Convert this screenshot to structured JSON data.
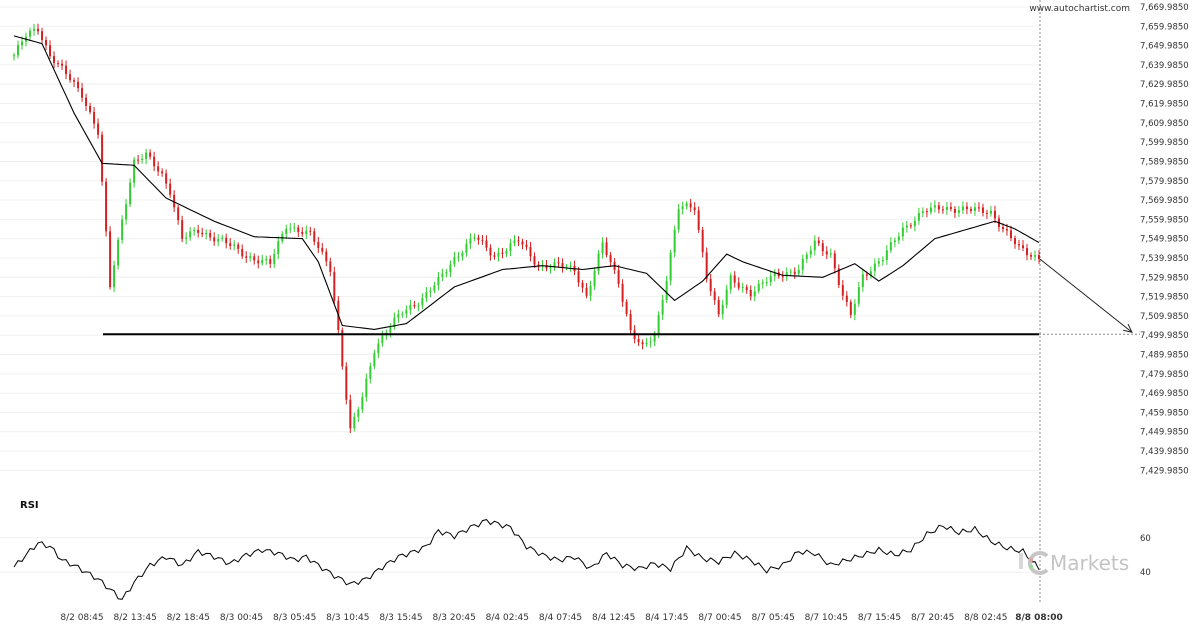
{
  "watermark_site": "www.autochartist.com",
  "brand": "Markets",
  "colors": {
    "up": "#33cc33",
    "down": "#d42020",
    "ma": "#000000",
    "level": "#000000",
    "grid": "#f0f0f0",
    "vline": "#888888"
  },
  "icons": [
    "brand-logo-icon"
  ],
  "chart_data": [
    {
      "type": "candlestick",
      "title": "",
      "x_tick_labels": [
        "8/2 08:45",
        "8/2 13:45",
        "8/2 18:45",
        "8/3 00:45",
        "8/3 05:45",
        "8/3 10:45",
        "8/3 15:45",
        "8/3 20:45",
        "8/4 02:45",
        "8/4 07:45",
        "8/4 12:45",
        "8/4 17:45",
        "8/7 00:45",
        "8/7 05:45",
        "8/7 10:45",
        "8/7 15:45",
        "8/7 20:45",
        "8/8 02:45",
        "8/8 08:00"
      ],
      "y_tick_labels": [
        "7,669.9850",
        "7,659.9850",
        "7,649.9850",
        "7,639.9850",
        "7,629.9850",
        "7,619.9850",
        "7,609.9850",
        "7,599.9850",
        "7,589.9850",
        "7,579.9850",
        "7,569.9850",
        "7,559.9850",
        "7,549.9850",
        "7,539.9850",
        "7,529.9850",
        "7,519.9850",
        "7,509.9850",
        "7,499.9850",
        "7,489.9850",
        "7,479.9850",
        "7,469.9850",
        "7,459.9850",
        "7,449.9850",
        "7,439.9850",
        "7,429.9850"
      ],
      "ylim": [
        7424.985,
        7669.985
      ],
      "grid": true,
      "support_level": 7500.5,
      "forecast_target": 7501.5,
      "moving_average_anchors": [
        [
          0,
          7655
        ],
        [
          7,
          7651
        ],
        [
          15,
          7615
        ],
        [
          22,
          7589
        ],
        [
          30,
          7588
        ],
        [
          38,
          7571
        ],
        [
          50,
          7559
        ],
        [
          60,
          7551
        ],
        [
          72,
          7550
        ],
        [
          76,
          7538
        ],
        [
          82,
          7505
        ],
        [
          90,
          7503
        ],
        [
          98,
          7506
        ],
        [
          110,
          7525
        ],
        [
          122,
          7534
        ],
        [
          132,
          7536
        ],
        [
          142,
          7534
        ],
        [
          150,
          7536
        ],
        [
          158,
          7532
        ],
        [
          165,
          7518
        ],
        [
          172,
          7528
        ],
        [
          178,
          7542
        ],
        [
          182,
          7538
        ],
        [
          192,
          7531
        ],
        [
          202,
          7530
        ],
        [
          210,
          7537
        ],
        [
          216,
          7528
        ],
        [
          222,
          7536
        ],
        [
          230,
          7550
        ],
        [
          245,
          7559
        ],
        [
          250,
          7555
        ],
        [
          256,
          7548
        ]
      ],
      "close_anchors": [
        [
          0,
          7645
        ],
        [
          3,
          7655
        ],
        [
          6,
          7659
        ],
        [
          9,
          7645
        ],
        [
          13,
          7635
        ],
        [
          17,
          7625
        ],
        [
          21,
          7605
        ],
        [
          24,
          7525
        ],
        [
          27,
          7560
        ],
        [
          30,
          7590
        ],
        [
          33,
          7593
        ],
        [
          37,
          7583
        ],
        [
          39,
          7575
        ],
        [
          42,
          7550
        ],
        [
          46,
          7554
        ],
        [
          52,
          7549
        ],
        [
          58,
          7541
        ],
        [
          64,
          7537
        ],
        [
          68,
          7557
        ],
        [
          74,
          7552
        ],
        [
          79,
          7535
        ],
        [
          81,
          7502
        ],
        [
          84,
          7450
        ],
        [
          87,
          7468
        ],
        [
          90,
          7493
        ],
        [
          93,
          7502
        ],
        [
          97,
          7512
        ],
        [
          102,
          7519
        ],
        [
          106,
          7528
        ],
        [
          110,
          7540
        ],
        [
          115,
          7551
        ],
        [
          120,
          7541
        ],
        [
          126,
          7549
        ],
        [
          131,
          7536
        ],
        [
          136,
          7536
        ],
        [
          140,
          7534
        ],
        [
          143,
          7520
        ],
        [
          147,
          7547
        ],
        [
          151,
          7528
        ],
        [
          154,
          7502
        ],
        [
          157,
          7493
        ],
        [
          160,
          7500
        ],
        [
          163,
          7530
        ],
        [
          166,
          7566
        ],
        [
          170,
          7566
        ],
        [
          173,
          7531
        ],
        [
          176,
          7510
        ],
        [
          179,
          7529
        ],
        [
          184,
          7522
        ],
        [
          190,
          7531
        ],
        [
          196,
          7534
        ],
        [
          200,
          7548
        ],
        [
          204,
          7542
        ],
        [
          207,
          7520
        ],
        [
          209,
          7510
        ],
        [
          212,
          7531
        ],
        [
          217,
          7540
        ],
        [
          222,
          7555
        ],
        [
          227,
          7564
        ],
        [
          232,
          7566
        ],
        [
          238,
          7565
        ],
        [
          244,
          7564
        ],
        [
          247,
          7555
        ],
        [
          251,
          7545
        ],
        [
          256,
          7540
        ]
      ],
      "series": [
        {
          "name": "",
          "type": "candlestick",
          "count": 257
        },
        {
          "name": "",
          "type": "moving-average"
        },
        {
          "name": "",
          "type": "support-level",
          "value": 7500.5
        }
      ]
    },
    {
      "type": "line",
      "title": "RSI",
      "y_tick_labels": [
        "60",
        "40"
      ],
      "ylim": [
        25,
        75
      ],
      "rsi_anchors": [
        [
          0,
          43
        ],
        [
          3,
          50
        ],
        [
          6,
          57
        ],
        [
          9,
          55
        ],
        [
          12,
          47
        ],
        [
          15,
          44
        ],
        [
          18,
          40
        ],
        [
          21,
          36
        ],
        [
          24,
          30
        ],
        [
          27,
          24
        ],
        [
          30,
          34
        ],
        [
          34,
          44
        ],
        [
          38,
          49
        ],
        [
          42,
          44
        ],
        [
          46,
          52
        ],
        [
          50,
          49
        ],
        [
          54,
          45
        ],
        [
          58,
          50
        ],
        [
          62,
          53
        ],
        [
          66,
          51
        ],
        [
          70,
          47
        ],
        [
          73,
          49
        ],
        [
          76,
          44
        ],
        [
          80,
          38
        ],
        [
          84,
          33
        ],
        [
          88,
          36
        ],
        [
          92,
          43
        ],
        [
          96,
          49
        ],
        [
          100,
          52
        ],
        [
          103,
          55
        ],
        [
          106,
          64
        ],
        [
          110,
          61
        ],
        [
          114,
          66
        ],
        [
          118,
          70
        ],
        [
          121,
          68
        ],
        [
          124,
          66
        ],
        [
          128,
          55
        ],
        [
          132,
          50
        ],
        [
          136,
          47
        ],
        [
          140,
          49
        ],
        [
          144,
          42
        ],
        [
          148,
          51
        ],
        [
          152,
          44
        ],
        [
          156,
          42
        ],
        [
          160,
          45
        ],
        [
          164,
          42
        ],
        [
          168,
          54
        ],
        [
          172,
          48
        ],
        [
          176,
          46
        ],
        [
          180,
          51
        ],
        [
          184,
          47
        ],
        [
          188,
          41
        ],
        [
          192,
          44
        ],
        [
          196,
          52
        ],
        [
          200,
          51
        ],
        [
          204,
          44
        ],
        [
          208,
          47
        ],
        [
          212,
          50
        ],
        [
          216,
          53
        ],
        [
          220,
          50
        ],
        [
          224,
          53
        ],
        [
          228,
          62
        ],
        [
          232,
          67
        ],
        [
          236,
          63
        ],
        [
          240,
          65
        ],
        [
          244,
          58
        ],
        [
          248,
          54
        ],
        [
          252,
          52
        ],
        [
          256,
          42
        ]
      ]
    }
  ]
}
